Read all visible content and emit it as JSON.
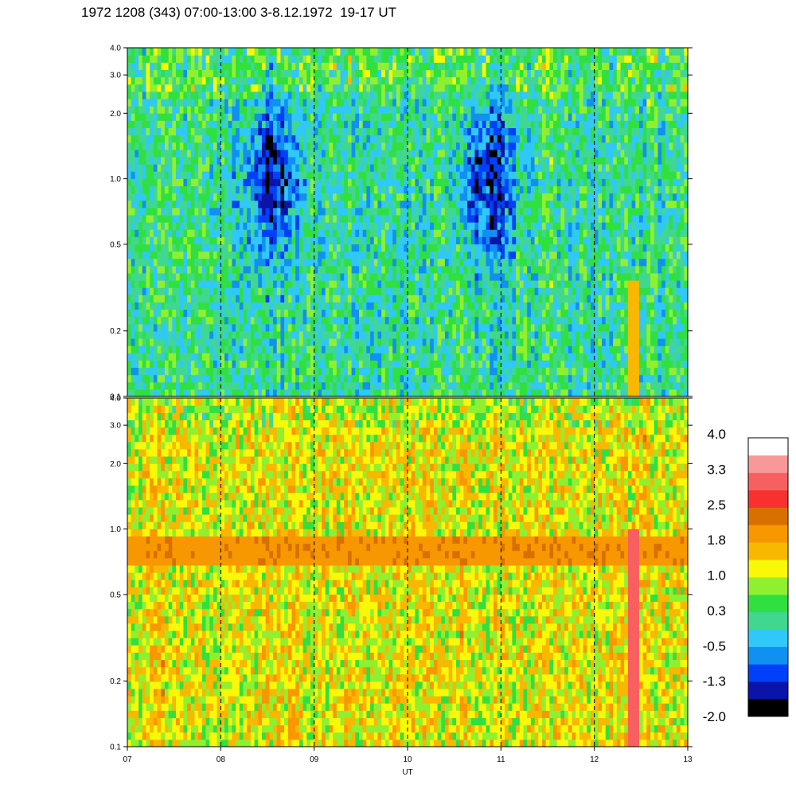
{
  "title": "1972 1208 (343) 07:00-13:00 3-8.12.1972  19-17 UT",
  "chart_data": {
    "type": "heatmap",
    "title": "1972 1208 (343) 07:00-13:00 3-8.12.1972  19-17 UT",
    "xlabel": "UT",
    "x_ticks": [
      "07",
      "08",
      "09",
      "10",
      "11",
      "12",
      "13"
    ],
    "x_range": [
      7,
      13
    ],
    "panels": [
      {
        "name": "upper",
        "y_scale": "log",
        "y_range": [
          0.1,
          4.0
        ],
        "y_ticks": [
          {
            "value": 0.1,
            "label": "0.1"
          },
          {
            "value": 0.2,
            "label": "0.2"
          },
          {
            "value": 0.5,
            "label": "0.5"
          },
          {
            "value": 1.0,
            "label": "1.0"
          },
          {
            "value": 2.0,
            "label": "2.0"
          },
          {
            "value": 3.0,
            "label": "3.0"
          },
          {
            "value": 4.0,
            "label": "4.0"
          }
        ],
        "typical_level": 0.1,
        "blue_patches_ut": [
          8.55,
          10.85
        ],
        "highlight_band": {
          "ut": [
            12.37,
            12.47
          ],
          "freq": [
            0.1,
            0.35
          ],
          "level": 1.5
        }
      },
      {
        "name": "lower",
        "y_scale": "log",
        "y_range": [
          0.1,
          4.0
        ],
        "y_ticks": [
          {
            "value": 0.1,
            "label": "0.1"
          },
          {
            "value": 0.2,
            "label": "0.2"
          },
          {
            "value": 0.5,
            "label": "0.5"
          },
          {
            "value": 1.0,
            "label": "1.0"
          },
          {
            "value": 2.0,
            "label": "2.0"
          },
          {
            "value": 3.0,
            "label": "3.0"
          },
          {
            "value": 4.0,
            "label": "4.0"
          }
        ],
        "typical_level": 1.2,
        "orange_band_freq": [
          0.7,
          0.95
        ],
        "highlight_band": {
          "ut": [
            12.37,
            12.47
          ],
          "freq": [
            0.1,
            1.0
          ],
          "level": 3.0
        }
      }
    ],
    "dashed_lines_ut": [
      8,
      9,
      10,
      11,
      12
    ],
    "colorbar": {
      "range": [
        -2.0,
        4.0
      ],
      "labels": [
        "4.0",
        "3.3",
        "2.5",
        "1.8",
        "1.0",
        "0.3",
        "-0.5",
        "-1.3",
        "-2.0"
      ],
      "colors": [
        "#000000",
        "#0a14a8",
        "#0040f8",
        "#1090f0",
        "#30c8f8",
        "#40d890",
        "#30e040",
        "#90f030",
        "#f8f808",
        "#f8b800",
        "#f89800",
        "#d87000",
        "#f83030",
        "#f86060",
        "#f89898",
        "#ffffff"
      ]
    }
  }
}
